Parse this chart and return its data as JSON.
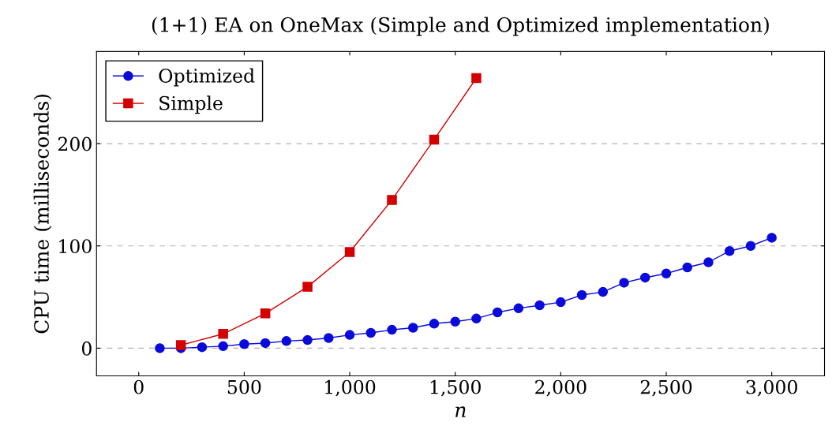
{
  "chart_data": {
    "type": "line",
    "title": "(1+1) EA on OneMax (Simple and Optimized implementation)",
    "xlabel": "n",
    "ylabel": "CPU time (milliseconds)",
    "series": [
      {
        "name": "Optimized",
        "color": "#0a0adc",
        "marker": "circle",
        "x": [
          100,
          200,
          300,
          400,
          500,
          600,
          700,
          800,
          900,
          1000,
          1100,
          1200,
          1300,
          1400,
          1500,
          1600,
          1700,
          1800,
          1900,
          2000,
          2100,
          2200,
          2300,
          2400,
          2500,
          2600,
          2700,
          2800,
          2900,
          3000
        ],
        "values": [
          0,
          0,
          1,
          2,
          4,
          5,
          7,
          8,
          10,
          13,
          15,
          18,
          20,
          24,
          26,
          29,
          35,
          39,
          42,
          45,
          52,
          55,
          64,
          69,
          73,
          79,
          84,
          95,
          100,
          108
        ]
      },
      {
        "name": "Simple",
        "color": "#d40000",
        "marker": "square",
        "x": [
          200,
          400,
          600,
          800,
          1000,
          1200,
          1400,
          1600
        ],
        "values": [
          3,
          14,
          34,
          60,
          94,
          145,
          204,
          264
        ]
      }
    ],
    "xlim": [
      -200,
      3250
    ],
    "xticks": [
      0,
      500,
      {
        "value": 1000,
        "label": "1,000"
      },
      {
        "value": 1500,
        "label": "1,500"
      },
      {
        "value": 2000,
        "label": "2,000"
      },
      {
        "value": 2500,
        "label": "2,500"
      },
      {
        "value": 3000,
        "label": "3,000"
      }
    ],
    "ylim": [
      -27,
      290
    ],
    "yticks": [
      0,
      100,
      200
    ],
    "grid": "y",
    "legend": "top left",
    "line_style": "solid"
  }
}
